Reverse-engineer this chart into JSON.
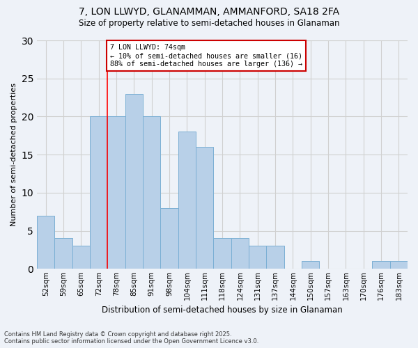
{
  "title1": "7, LON LLWYD, GLANAMMAN, AMMANFORD, SA18 2FA",
  "title2": "Size of property relative to semi-detached houses in Glanaman",
  "xlabel": "Distribution of semi-detached houses by size in Glanaman",
  "ylabel": "Number of semi-detached properties",
  "categories": [
    "52sqm",
    "59sqm",
    "65sqm",
    "72sqm",
    "78sqm",
    "85sqm",
    "91sqm",
    "98sqm",
    "104sqm",
    "111sqm",
    "118sqm",
    "124sqm",
    "131sqm",
    "137sqm",
    "144sqm",
    "150sqm",
    "157sqm",
    "163sqm",
    "170sqm",
    "176sqm",
    "183sqm"
  ],
  "values": [
    7,
    4,
    3,
    20,
    20,
    23,
    20,
    8,
    18,
    16,
    4,
    4,
    3,
    3,
    0,
    1,
    0,
    0,
    0,
    1,
    1
  ],
  "bar_color": "#b8d0e8",
  "bar_edge_color": "#7bafd4",
  "red_line_x": 3.5,
  "annotation_text": "7 LON LLWYD: 74sqm\n← 10% of semi-detached houses are smaller (16)\n88% of semi-detached houses are larger (136) →",
  "annotation_box_color": "#ffffff",
  "annotation_box_edge": "#cc0000",
  "footnote1": "Contains HM Land Registry data © Crown copyright and database right 2025.",
  "footnote2": "Contains public sector information licensed under the Open Government Licence v3.0.",
  "ylim": [
    0,
    30
  ],
  "yticks": [
    0,
    5,
    10,
    15,
    20,
    25,
    30
  ],
  "grid_color": "#d0d0d0",
  "background_color": "#eef2f8"
}
